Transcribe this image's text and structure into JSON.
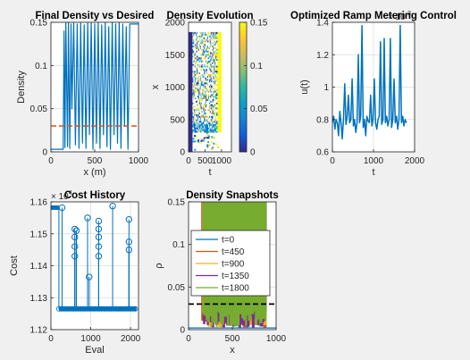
{
  "chart_data": [
    {
      "type": "line",
      "title": "Final Density vs Desired",
      "xlabel": "x (m)",
      "ylabel": "Density",
      "xlim": [
        0,
        1000
      ],
      "ylim": [
        0,
        0.15
      ],
      "xticks": [
        "0",
        "500",
        "1000"
      ],
      "yticks": [
        "0",
        "0.05",
        "0.1",
        "0.15"
      ],
      "grid": true,
      "series": [
        {
          "role": "final density",
          "style": "solid",
          "color": "#0072BD",
          "x": [
            0,
            140,
            150,
            160,
            170,
            190,
            200,
            215,
            230,
            240,
            260,
            280,
            300,
            320,
            340,
            360,
            380,
            400,
            420,
            440,
            460,
            480,
            500,
            520,
            540,
            560,
            580,
            600,
            620,
            640,
            660,
            680,
            700,
            720,
            740,
            760,
            780,
            800,
            820,
            840,
            860,
            880,
            900,
            1000
          ],
          "y": [
            0.003,
            0.003,
            0.14,
            0.005,
            0.15,
            0.006,
            0.15,
            0.004,
            0.148,
            0.05,
            0.15,
            0.008,
            0.148,
            0.004,
            0.15,
            0.01,
            0.147,
            0.004,
            0.15,
            0.02,
            0.15,
            0.003,
            0.148,
            0.01,
            0.15,
            0.004,
            0.147,
            0.02,
            0.15,
            0.006,
            0.145,
            0.003,
            0.15,
            0.02,
            0.148,
            0.01,
            0.15,
            0.004,
            0.148,
            0.03,
            0.145,
            0.003,
            0.148,
            0.148
          ]
        },
        {
          "role": "desired density",
          "style": "dashed",
          "color": "#D95319",
          "x": [
            0,
            1000
          ],
          "y": [
            0.03,
            0.03
          ]
        }
      ]
    },
    {
      "type": "heatmap",
      "title": "Density Evolution",
      "xlabel": "t",
      "ylabel": "x",
      "xlim": [
        0,
        1300
      ],
      "ylim": [
        0,
        2000
      ],
      "xticks": [
        "0",
        "500",
        "1000"
      ],
      "yticks": [
        "0",
        "500",
        "1000",
        "1500",
        "2000"
      ],
      "colorbar": {
        "range": [
          0,
          0.15
        ],
        "ticks": [
          "0",
          "0.05",
          "0.1",
          "0.15"
        ]
      },
      "colormap": "parula"
    },
    {
      "type": "line",
      "title": "Optimized Ramp Metering Control",
      "xlabel": "t",
      "ylabel": "u(t)",
      "xlim": [
        0,
        2000
      ],
      "ylim": [
        0.6,
        1.4
      ],
      "xticks": [
        "0",
        "1000",
        "2000"
      ],
      "yticks": [
        "0.6",
        "0.8",
        "1",
        "1.2",
        "1.4"
      ],
      "exponent_label": "10",
      "exponent": "-3",
      "grid": true,
      "series": [
        {
          "color": "#0072BD",
          "x": [
            0,
            30,
            60,
            90,
            120,
            150,
            180,
            210,
            240,
            270,
            300,
            330,
            360,
            390,
            420,
            450,
            480,
            510,
            540,
            570,
            600,
            630,
            660,
            690,
            720,
            750,
            780,
            810,
            840,
            870,
            900,
            930,
            960,
            990,
            1020,
            1050,
            1080,
            1110,
            1140,
            1170,
            1200,
            1230,
            1260,
            1290,
            1320,
            1350,
            1380,
            1410,
            1440,
            1470,
            1500,
            1530,
            1560,
            1590,
            1620,
            1650,
            1680,
            1710,
            1740,
            1770,
            1800
          ],
          "y": [
            0.78,
            0.82,
            0.74,
            0.8,
            0.78,
            0.7,
            0.85,
            0.78,
            0.68,
            0.8,
            1.02,
            0.77,
            0.82,
            0.95,
            0.78,
            0.8,
            1.05,
            0.76,
            0.8,
            0.72,
            0.78,
            1.2,
            0.78,
            0.82,
            1.38,
            0.75,
            0.8,
            0.7,
            0.82,
            0.79,
            0.78,
            0.95,
            0.76,
            0.8,
            1.05,
            0.78,
            0.74,
            0.8,
            0.82,
            1.28,
            0.77,
            0.8,
            1.3,
            0.78,
            0.82,
            0.76,
            0.8,
            1.3,
            0.75,
            0.8,
            1.05,
            0.78,
            0.82,
            0.74,
            0.8,
            1.38,
            0.78,
            0.82,
            0.76,
            0.8,
            0.78
          ]
        }
      ]
    },
    {
      "type": "line",
      "title": "Cost History",
      "xlabel": "Eval",
      "ylabel": "Cost",
      "xlim": [
        0,
        2200
      ],
      "ylim": [
        1.12,
        1.16
      ],
      "xticks": [
        "0",
        "1000",
        "2000"
      ],
      "yticks": [
        "1.12",
        "1.13",
        "1.14",
        "1.15",
        "1.16"
      ],
      "exponent_label": "10",
      "exponent": "4",
      "grid": true,
      "marker": "circle",
      "baseline": 1.1265,
      "start_level": 1.1582,
      "start_span": [
        0,
        200
      ],
      "base_span": [
        200,
        2150
      ],
      "spikes": [
        {
          "x": 280,
          "y": 1.1582
        },
        {
          "x": 600,
          "y": 1.1515
        },
        {
          "x": 600,
          "y": 1.149
        },
        {
          "x": 600,
          "y": 1.146
        },
        {
          "x": 600,
          "y": 1.143
        },
        {
          "x": 640,
          "y": 1.151
        },
        {
          "x": 920,
          "y": 1.155
        },
        {
          "x": 960,
          "y": 1.1365
        },
        {
          "x": 1200,
          "y": 1.154
        },
        {
          "x": 1200,
          "y": 1.1515
        },
        {
          "x": 1200,
          "y": 1.149
        },
        {
          "x": 1200,
          "y": 1.146
        },
        {
          "x": 1200,
          "y": 1.143
        },
        {
          "x": 1550,
          "y": 1.1587
        },
        {
          "x": 1960,
          "y": 1.1545
        },
        {
          "x": 1960,
          "y": 1.1475
        },
        {
          "x": 1960,
          "y": 1.145
        }
      ]
    },
    {
      "type": "line",
      "title": "Density Snapshots",
      "xlabel": "x",
      "ylabel": "ρ",
      "xlim": [
        0,
        1000
      ],
      "ylim": [
        0,
        0.15
      ],
      "xticks": [
        "0",
        "500",
        "1000"
      ],
      "yticks": [
        "0",
        "0.05",
        "0.1",
        "0.15"
      ],
      "grid": true,
      "legend": {
        "position": "left",
        "labels": [
          "t=0",
          "t=450",
          "t=900",
          "t=1350",
          "t=1800"
        ]
      },
      "series": [
        {
          "name": "t=0",
          "color": "#0072BD",
          "x": [
            0,
            1000
          ],
          "y": [
            0.002,
            0.002
          ]
        },
        {
          "name": "t=450",
          "color": "#D95319",
          "x": [
            0,
            150,
            160,
            880,
            890,
            1000
          ],
          "y": [
            0.002,
            0.002,
            0.15,
            0.15,
            0.002,
            0.002
          ]
        },
        {
          "name": "t=900",
          "color": "#EDB120",
          "x": [
            0,
            150,
            160,
            880,
            890,
            1000
          ],
          "y": [
            0.002,
            0.002,
            0.15,
            0.15,
            0.002,
            0.002
          ]
        },
        {
          "name": "t=1350",
          "color": "#7E2F8E",
          "x": [
            0,
            150,
            160,
            880,
            890,
            1000
          ],
          "y": [
            0.002,
            0.002,
            0.15,
            0.15,
            0.002,
            0.002
          ]
        },
        {
          "name": "t=1800",
          "color": "#77AC30",
          "x": [
            0,
            150,
            160,
            880,
            890,
            1000
          ],
          "y": [
            0.002,
            0.002,
            0.15,
            0.15,
            0.002,
            0.002
          ]
        },
        {
          "role": "desired density",
          "style": "dashed",
          "color": "#000000",
          "x": [
            0,
            1000
          ],
          "y": [
            0.03,
            0.03
          ]
        }
      ]
    }
  ]
}
